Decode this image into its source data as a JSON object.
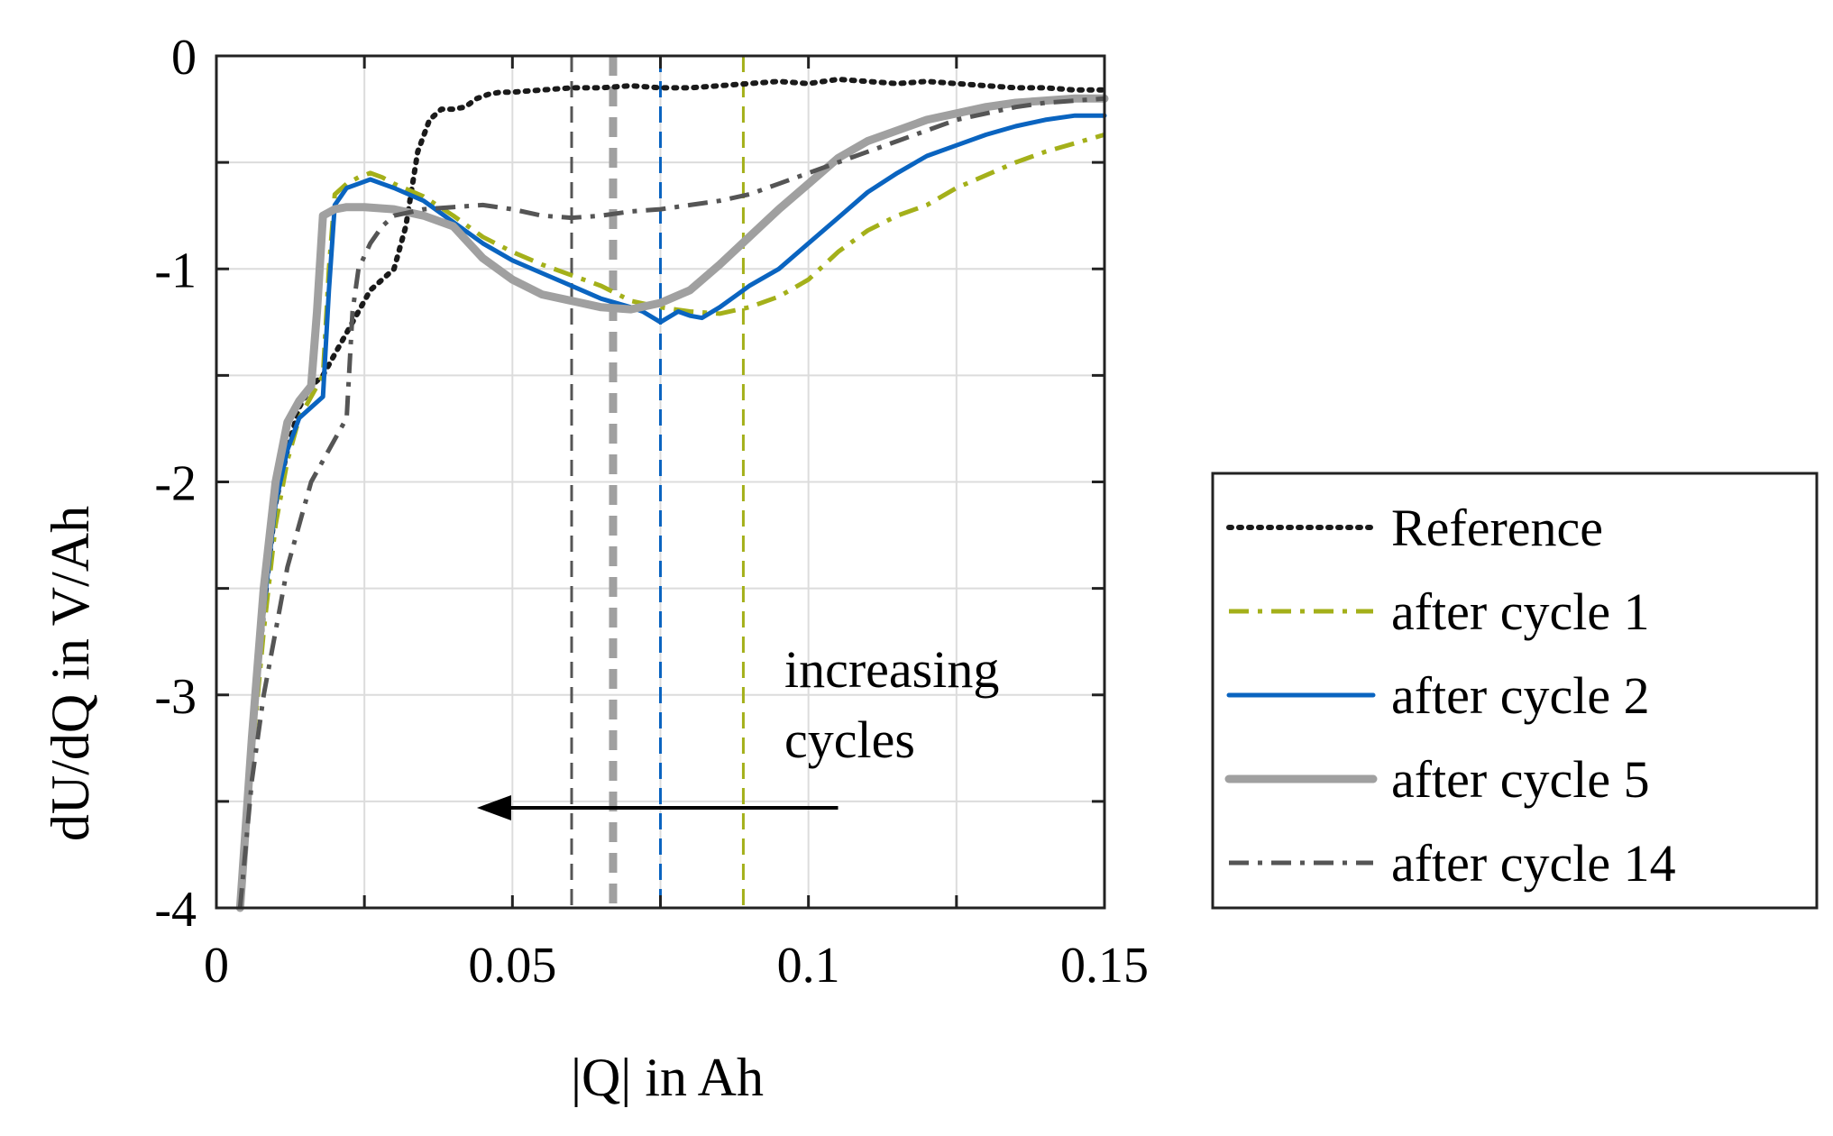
{
  "chart_data": {
    "type": "line",
    "title": "",
    "xlabel": "|Q| in Ah",
    "ylabel": "dU/dQ in V/Ah",
    "xlim": [
      0,
      0.15
    ],
    "ylim": [
      -4,
      0
    ],
    "xticks": [
      0,
      0.05,
      0.1,
      0.15
    ],
    "xtick_labels": [
      "0",
      "0.05",
      "0.1",
      "0.15"
    ],
    "yticks": [
      0,
      -1,
      -2,
      -3,
      -4
    ],
    "ytick_labels": [
      "0",
      "-1",
      "-2",
      "-3",
      "-4"
    ],
    "grid": true,
    "legend_position": "outside-right",
    "series": [
      {
        "name": "Reference",
        "color": "#1a1a1a",
        "style": "dotted",
        "x": [
          0.004,
          0.006,
          0.008,
          0.01,
          0.012,
          0.014,
          0.016,
          0.018,
          0.02,
          0.022,
          0.024,
          0.026,
          0.028,
          0.03,
          0.032,
          0.034,
          0.036,
          0.038,
          0.04,
          0.042,
          0.044,
          0.046,
          0.048,
          0.05,
          0.055,
          0.06,
          0.065,
          0.07,
          0.075,
          0.08,
          0.085,
          0.09,
          0.095,
          0.1,
          0.105,
          0.11,
          0.115,
          0.12,
          0.125,
          0.13,
          0.135,
          0.14,
          0.145,
          0.15
        ],
        "y": [
          -4.0,
          -3.2,
          -2.6,
          -2.1,
          -1.85,
          -1.65,
          -1.55,
          -1.5,
          -1.4,
          -1.3,
          -1.2,
          -1.1,
          -1.05,
          -1.0,
          -0.8,
          -0.45,
          -0.3,
          -0.25,
          -0.25,
          -0.24,
          -0.2,
          -0.18,
          -0.17,
          -0.17,
          -0.16,
          -0.15,
          -0.15,
          -0.14,
          -0.15,
          -0.15,
          -0.14,
          -0.13,
          -0.12,
          -0.13,
          -0.11,
          -0.12,
          -0.13,
          -0.12,
          -0.13,
          -0.14,
          -0.15,
          -0.15,
          -0.16,
          -0.16
        ]
      },
      {
        "name": "after cycle 1",
        "color": "#a4b01a",
        "style": "dashdot",
        "x": [
          0.004,
          0.006,
          0.008,
          0.01,
          0.012,
          0.014,
          0.016,
          0.018,
          0.019,
          0.02,
          0.022,
          0.024,
          0.026,
          0.028,
          0.03,
          0.035,
          0.04,
          0.045,
          0.05,
          0.055,
          0.06,
          0.065,
          0.07,
          0.075,
          0.08,
          0.085,
          0.09,
          0.095,
          0.1,
          0.105,
          0.11,
          0.115,
          0.12,
          0.125,
          0.13,
          0.135,
          0.14,
          0.145,
          0.15
        ],
        "y": [
          -4.0,
          -3.3,
          -2.7,
          -2.2,
          -1.9,
          -1.7,
          -1.6,
          -1.5,
          -1.0,
          -0.65,
          -0.6,
          -0.57,
          -0.55,
          -0.57,
          -0.6,
          -0.66,
          -0.75,
          -0.85,
          -0.92,
          -0.98,
          -1.03,
          -1.08,
          -1.15,
          -1.18,
          -1.2,
          -1.21,
          -1.18,
          -1.13,
          -1.05,
          -0.92,
          -0.82,
          -0.75,
          -0.7,
          -0.62,
          -0.56,
          -0.5,
          -0.45,
          -0.41,
          -0.37
        ]
      },
      {
        "name": "after cycle 2",
        "color": "#0a64c0",
        "style": "solid",
        "x": [
          0.004,
          0.006,
          0.008,
          0.01,
          0.012,
          0.014,
          0.016,
          0.018,
          0.019,
          0.02,
          0.022,
          0.024,
          0.026,
          0.028,
          0.03,
          0.035,
          0.04,
          0.045,
          0.05,
          0.055,
          0.06,
          0.065,
          0.07,
          0.072,
          0.075,
          0.078,
          0.08,
          0.082,
          0.085,
          0.088,
          0.09,
          0.095,
          0.1,
          0.105,
          0.11,
          0.115,
          0.12,
          0.125,
          0.13,
          0.135,
          0.14,
          0.145,
          0.15
        ],
        "y": [
          -4.0,
          -3.2,
          -2.6,
          -2.1,
          -1.85,
          -1.7,
          -1.65,
          -1.6,
          -1.1,
          -0.7,
          -0.62,
          -0.6,
          -0.58,
          -0.6,
          -0.62,
          -0.68,
          -0.78,
          -0.88,
          -0.96,
          -1.02,
          -1.08,
          -1.14,
          -1.18,
          -1.2,
          -1.25,
          -1.2,
          -1.22,
          -1.23,
          -1.18,
          -1.12,
          -1.08,
          -1.0,
          -0.88,
          -0.76,
          -0.64,
          -0.55,
          -0.47,
          -0.42,
          -0.37,
          -0.33,
          -0.3,
          -0.28,
          -0.28
        ]
      },
      {
        "name": "after cycle 5",
        "color": "#a0a0a0",
        "style": "solid-thick",
        "x": [
          0.004,
          0.006,
          0.008,
          0.01,
          0.012,
          0.014,
          0.016,
          0.017,
          0.018,
          0.02,
          0.022,
          0.025,
          0.03,
          0.035,
          0.04,
          0.045,
          0.05,
          0.055,
          0.06,
          0.065,
          0.07,
          0.075,
          0.08,
          0.085,
          0.09,
          0.095,
          0.1,
          0.105,
          0.11,
          0.115,
          0.12,
          0.125,
          0.13,
          0.135,
          0.14,
          0.145,
          0.15
        ],
        "y": [
          -4.0,
          -3.2,
          -2.5,
          -2.0,
          -1.72,
          -1.62,
          -1.55,
          -1.2,
          -0.75,
          -0.72,
          -0.71,
          -0.71,
          -0.72,
          -0.75,
          -0.8,
          -0.95,
          -1.05,
          -1.12,
          -1.15,
          -1.18,
          -1.19,
          -1.16,
          -1.1,
          -0.98,
          -0.85,
          -0.72,
          -0.6,
          -0.48,
          -0.4,
          -0.35,
          -0.3,
          -0.27,
          -0.24,
          -0.22,
          -0.21,
          -0.2,
          -0.2
        ]
      },
      {
        "name": "after cycle 14",
        "color": "#555555",
        "style": "dashdot",
        "x": [
          0.004,
          0.006,
          0.008,
          0.01,
          0.012,
          0.014,
          0.016,
          0.018,
          0.02,
          0.022,
          0.023,
          0.024,
          0.026,
          0.028,
          0.03,
          0.035,
          0.04,
          0.045,
          0.05,
          0.055,
          0.06,
          0.065,
          0.07,
          0.075,
          0.08,
          0.085,
          0.09,
          0.095,
          0.1,
          0.105,
          0.11,
          0.115,
          0.12,
          0.125,
          0.13,
          0.135,
          0.14,
          0.145,
          0.15
        ],
        "y": [
          -4.0,
          -3.4,
          -3.0,
          -2.7,
          -2.4,
          -2.2,
          -2.0,
          -1.9,
          -1.8,
          -1.7,
          -1.2,
          -1.0,
          -0.88,
          -0.8,
          -0.75,
          -0.72,
          -0.71,
          -0.7,
          -0.72,
          -0.75,
          -0.76,
          -0.75,
          -0.73,
          -0.72,
          -0.7,
          -0.68,
          -0.65,
          -0.6,
          -0.55,
          -0.5,
          -0.45,
          -0.4,
          -0.35,
          -0.3,
          -0.27,
          -0.24,
          -0.22,
          -0.21,
          -0.2
        ]
      }
    ],
    "vlines": [
      {
        "x": 0.06,
        "color": "#555555",
        "style": "dashed",
        "width": 3
      },
      {
        "x": 0.067,
        "color": "#a0a0a0",
        "style": "dashed-thick",
        "width": 9
      },
      {
        "x": 0.075,
        "color": "#0a64c0",
        "style": "dashed",
        "width": 3
      },
      {
        "x": 0.089,
        "color": "#a4b01a",
        "style": "dashed",
        "width": 3
      }
    ],
    "annotation": {
      "lines": [
        "increasing",
        "cycles"
      ],
      "arrow_from_x": 0.105,
      "arrow_to_x": 0.044,
      "arrow_y": -3.53
    }
  }
}
